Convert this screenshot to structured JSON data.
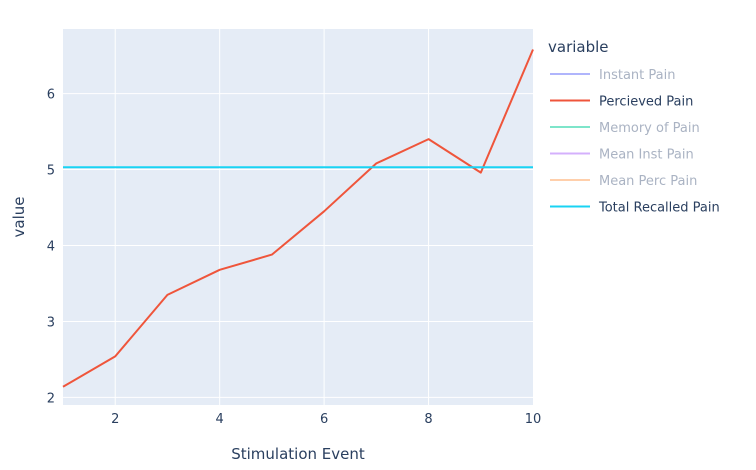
{
  "chart_data": {
    "type": "line",
    "xlabel": "Stimulation Event",
    "ylabel": "value",
    "xlim": [
      1,
      10
    ],
    "ylim": [
      1.9,
      6.85
    ],
    "xticks": [
      2,
      4,
      6,
      8,
      10
    ],
    "yticks": [
      2,
      3,
      4,
      5,
      6
    ],
    "grid": true,
    "plot_background": "#e5ecf6",
    "legend": {
      "title": "variable",
      "placement": "right"
    },
    "series": [
      {
        "name": "Instant Pain",
        "color": "#636efa",
        "hidden": true,
        "x": [],
        "y": []
      },
      {
        "name": "Percieved Pain",
        "color": "#ef553b",
        "hidden": false,
        "x": [
          1,
          2,
          3,
          4,
          5,
          6,
          7,
          8,
          9,
          10
        ],
        "y": [
          2.14,
          2.54,
          3.35,
          3.68,
          3.88,
          4.45,
          5.08,
          5.4,
          4.96,
          6.58
        ]
      },
      {
        "name": "Memory of Pain",
        "color": "#00cc96",
        "hidden": true,
        "x": [],
        "y": []
      },
      {
        "name": "Mean Inst Pain",
        "color": "#ab63fa",
        "hidden": true,
        "x": [],
        "y": []
      },
      {
        "name": "Mean Perc Pain",
        "color": "#ffa15a",
        "hidden": true,
        "x": [],
        "y": []
      },
      {
        "name": "Total Recalled Pain",
        "color": "#19d3f3",
        "hidden": false,
        "x": [
          1,
          10
        ],
        "y": [
          5.03,
          5.03
        ]
      }
    ]
  }
}
